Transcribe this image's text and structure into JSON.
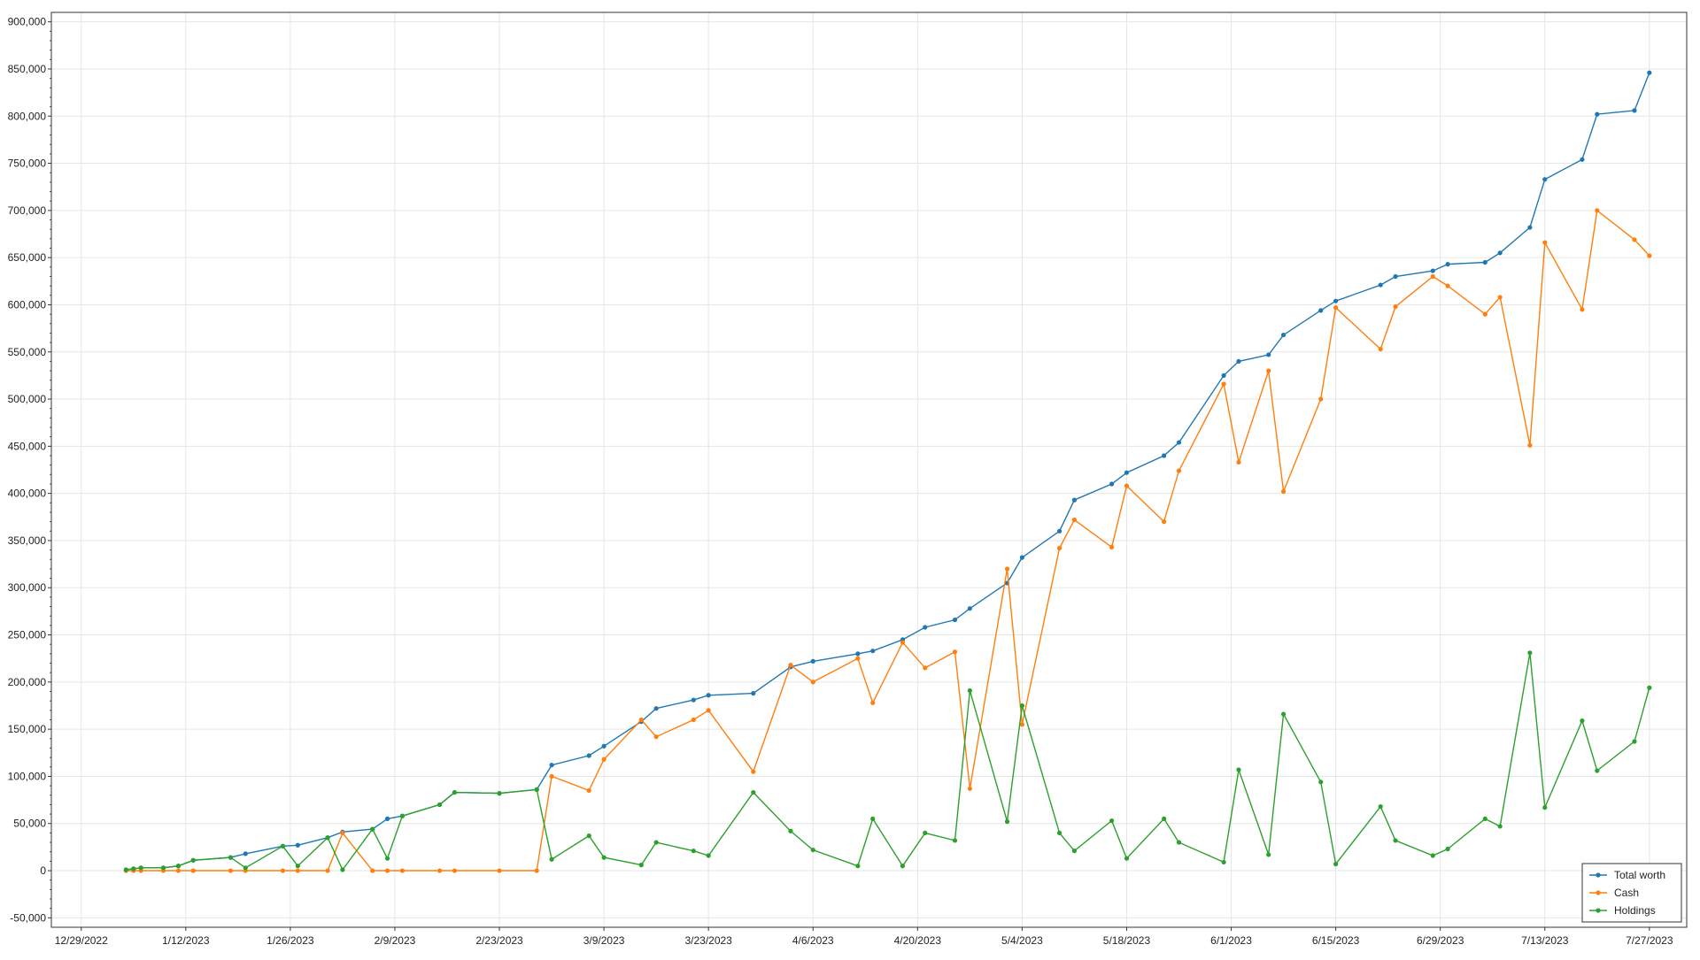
{
  "chart_data": {
    "type": "line",
    "title": "",
    "xlabel": "",
    "ylabel": "",
    "x_tick_labels": [
      "12/29/2022",
      "1/12/2023",
      "1/26/2023",
      "2/9/2023",
      "2/23/2023",
      "3/9/2023",
      "3/23/2023",
      "4/6/2023",
      "4/20/2023",
      "5/4/2023",
      "5/18/2023",
      "6/1/2023",
      "6/15/2023",
      "6/29/2023",
      "7/13/2023",
      "7/27/2023"
    ],
    "y_tick_labels": [
      "-50,000",
      "0",
      "50,000",
      "100,000",
      "150,000",
      "200,000",
      "250,000",
      "300,000",
      "350,000",
      "400,000",
      "450,000",
      "500,000",
      "550,000",
      "600,000",
      "650,000",
      "700,000",
      "750,000",
      "800,000",
      "850,000",
      "900,000"
    ],
    "xlim": [
      "12/25/2022",
      "8/1/2023"
    ],
    "ylim": [
      -60000,
      910000
    ],
    "grid": true,
    "legend_position": "bottom-right",
    "x": [
      "1/4/2023",
      "1/5/2023",
      "1/6/2023",
      "1/9/2023",
      "1/11/2023",
      "1/13/2023",
      "1/18/2023",
      "1/20/2023",
      "1/25/2023",
      "1/27/2023",
      "1/31/2023",
      "2/2/2023",
      "2/6/2023",
      "2/8/2023",
      "2/10/2023",
      "2/15/2023",
      "2/17/2023",
      "2/23/2023",
      "2/28/2023",
      "3/2/2023",
      "3/7/2023",
      "3/9/2023",
      "3/14/2023",
      "3/16/2023",
      "3/21/2023",
      "3/23/2023",
      "3/29/2023",
      "4/3/2023",
      "4/6/2023",
      "4/12/2023",
      "4/14/2023",
      "4/18/2023",
      "4/21/2023",
      "4/25/2023",
      "4/27/2023",
      "5/2/2023",
      "5/4/2023",
      "5/9/2023",
      "5/11/2023",
      "5/16/2023",
      "5/18/2023",
      "5/23/2023",
      "5/25/2023",
      "5/31/2023",
      "6/2/2023",
      "6/6/2023",
      "6/8/2023",
      "6/13/2023",
      "6/15/2023",
      "6/21/2023",
      "6/23/2023",
      "6/28/2023",
      "6/30/2023",
      "7/5/2023",
      "7/7/2023",
      "7/11/2023",
      "7/13/2023",
      "7/18/2023",
      "7/20/2023",
      "7/25/2023",
      "7/27/2023"
    ],
    "series": [
      {
        "name": "Total worth",
        "color": "#1f77b4",
        "values": [
          1000,
          2000,
          3000,
          3000,
          5000,
          11000,
          14000,
          18000,
          26000,
          27000,
          35000,
          41000,
          44000,
          55000,
          58000,
          70000,
          83000,
          82000,
          86000,
          112000,
          122000,
          132000,
          158000,
          172000,
          181000,
          186000,
          188000,
          216000,
          222000,
          230000,
          233000,
          245000,
          258000,
          266000,
          278000,
          305000,
          332000,
          360000,
          393000,
          410000,
          422000,
          440000,
          454000,
          525000,
          540000,
          547000,
          568000,
          594000,
          604000,
          621000,
          630000,
          636000,
          643000,
          645000,
          655000,
          682000,
          733000,
          754000,
          802000,
          806000,
          846000
        ]
      },
      {
        "name": "Cash",
        "color": "#ff7f0e",
        "values": [
          0,
          0,
          0,
          0,
          0,
          0,
          0,
          0,
          0,
          0,
          0,
          40000,
          0,
          0,
          0,
          0,
          0,
          0,
          0,
          100000,
          85000,
          118000,
          160000,
          142000,
          160000,
          170000,
          105000,
          218000,
          200000,
          225000,
          178000,
          242000,
          215000,
          232000,
          87000,
          320000,
          155000,
          342000,
          372000,
          343000,
          408000,
          370000,
          424000,
          516000,
          433000,
          530000,
          402000,
          500000,
          597000,
          553000,
          598000,
          630000,
          620000,
          590000,
          608000,
          451000,
          666000,
          595000,
          700000,
          669000,
          652000
        ]
      },
      {
        "name": "Holdings",
        "color": "#2ca02c",
        "values": [
          1000,
          2000,
          3000,
          3000,
          5000,
          11000,
          14000,
          3000,
          26000,
          5000,
          35000,
          1000,
          44000,
          13000,
          58000,
          70000,
          83000,
          82000,
          86000,
          12000,
          37000,
          14000,
          6000,
          30000,
          21000,
          16000,
          83000,
          42000,
          22000,
          5000,
          55000,
          5000,
          40000,
          32000,
          191000,
          52000,
          175000,
          40000,
          21000,
          53000,
          13000,
          55000,
          30000,
          9000,
          107000,
          17000,
          166000,
          94000,
          7000,
          68000,
          32000,
          16000,
          23000,
          55000,
          47000,
          231000,
          67000,
          159000,
          106000,
          137000,
          194000
        ]
      }
    ]
  }
}
